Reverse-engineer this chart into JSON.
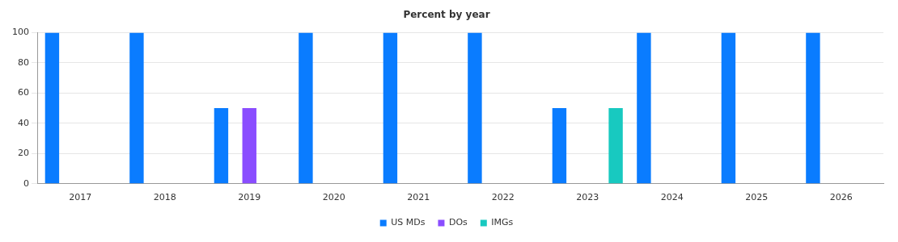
{
  "chart_data": {
    "type": "bar",
    "title": "Percent by year",
    "categories": [
      "2017",
      "2018",
      "2019",
      "2020",
      "2021",
      "2022",
      "2023",
      "2024",
      "2025",
      "2026"
    ],
    "series": [
      {
        "name": "US MDs",
        "color": "#0a7cff",
        "values": [
          100,
          100,
          50,
          100,
          100,
          100,
          50,
          100,
          100,
          100
        ]
      },
      {
        "name": "DOs",
        "color": "#8a4dff",
        "values": [
          0,
          0,
          50,
          0,
          0,
          0,
          0,
          0,
          0,
          0
        ]
      },
      {
        "name": "IMGs",
        "color": "#18c9c0",
        "values": [
          0,
          0,
          0,
          0,
          0,
          0,
          50,
          0,
          0,
          0
        ]
      }
    ],
    "ylim": [
      0,
      100
    ],
    "yticks": [
      0,
      20,
      40,
      60,
      80,
      100
    ],
    "grid": "y",
    "legend": "bottom"
  }
}
